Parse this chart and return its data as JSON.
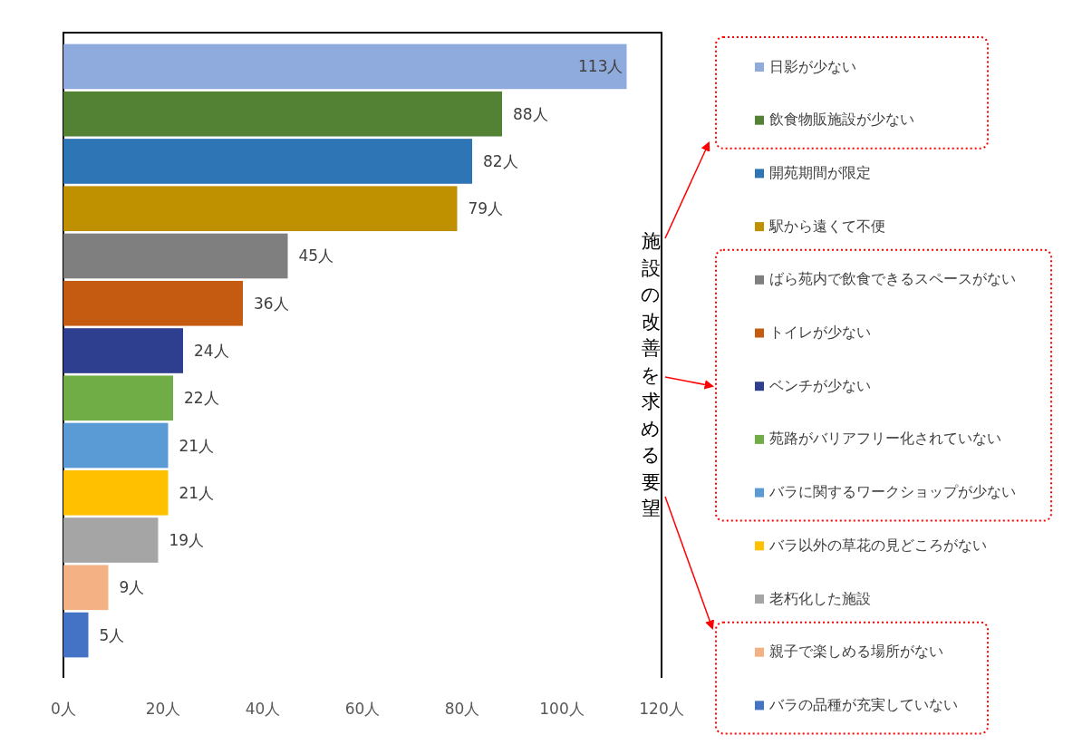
{
  "chart_data": {
    "type": "bar",
    "orientation": "horizontal",
    "stacked": true,
    "categories": [
      null,
      null,
      null,
      null,
      null,
      null,
      null,
      null,
      null,
      null,
      null,
      null,
      null
    ],
    "series": [
      {
        "name": "日影が少ない",
        "color": "#8faadc",
        "values": [
          113,
          null,
          null,
          null,
          null,
          null,
          null,
          null,
          null,
          null,
          null,
          null,
          null
        ],
        "value_labels": [
          "113人",
          null,
          null,
          null,
          null,
          null,
          null,
          null,
          null,
          null,
          null,
          null,
          null
        ]
      },
      {
        "name": "飲食物販施設が少ない",
        "color": "#548235",
        "values": [
          null,
          88,
          null,
          null,
          null,
          null,
          null,
          null,
          null,
          null,
          null,
          null,
          null
        ],
        "value_labels": [
          null,
          "88人",
          null,
          null,
          null,
          null,
          null,
          null,
          null,
          null,
          null,
          null,
          null
        ]
      },
      {
        "name": "開苑期間が限定",
        "color": "#2e75b6",
        "values": [
          null,
          null,
          82,
          null,
          null,
          null,
          null,
          null,
          null,
          null,
          null,
          null,
          null
        ],
        "value_labels": [
          null,
          null,
          "82人",
          null,
          null,
          null,
          null,
          null,
          null,
          null,
          null,
          null,
          null
        ]
      },
      {
        "name": "駅から遠くて不便",
        "color": "#bf9000",
        "values": [
          null,
          null,
          null,
          79,
          null,
          null,
          null,
          null,
          null,
          null,
          null,
          null,
          null
        ],
        "value_labels": [
          null,
          null,
          null,
          "79人",
          null,
          null,
          null,
          null,
          null,
          null,
          null,
          null,
          null
        ]
      },
      {
        "name": "ばら苑内で飲食できるスペースがない",
        "color": "#7f7f7f",
        "values": [
          null,
          null,
          null,
          null,
          45,
          null,
          null,
          null,
          null,
          null,
          null,
          null,
          null
        ],
        "value_labels": [
          null,
          null,
          null,
          null,
          "45人",
          null,
          null,
          null,
          null,
          null,
          null,
          null,
          null
        ]
      },
      {
        "name": "トイレが少ない",
        "color": "#c55a11",
        "values": [
          null,
          null,
          null,
          null,
          null,
          36,
          null,
          null,
          null,
          null,
          null,
          null,
          null
        ],
        "value_labels": [
          null,
          null,
          null,
          null,
          null,
          "36人",
          null,
          null,
          null,
          null,
          null,
          null,
          null
        ]
      },
      {
        "name": "ベンチが少ない",
        "color": "#2f3f8f",
        "values": [
          null,
          null,
          null,
          null,
          null,
          null,
          24,
          null,
          null,
          null,
          null,
          null,
          null
        ],
        "value_labels": [
          null,
          null,
          null,
          null,
          null,
          null,
          "24人",
          null,
          null,
          null,
          null,
          null,
          null
        ]
      },
      {
        "name": "苑路がバリアフリー化されていない",
        "color": "#70ad47",
        "values": [
          null,
          null,
          null,
          null,
          null,
          null,
          null,
          22,
          null,
          null,
          null,
          null,
          null
        ],
        "value_labels": [
          null,
          null,
          null,
          null,
          null,
          null,
          null,
          "22人",
          null,
          null,
          null,
          null,
          null
        ]
      },
      {
        "name": "バラに関するワークショップが少ない",
        "color": "#5b9bd5",
        "values": [
          null,
          null,
          null,
          null,
          null,
          null,
          null,
          null,
          21,
          null,
          null,
          null,
          null
        ],
        "value_labels": [
          null,
          null,
          null,
          null,
          null,
          null,
          null,
          null,
          "21人",
          null,
          null,
          null,
          null
        ]
      },
      {
        "name": "バラ以外の草花の見どころがない",
        "color": "#ffc000",
        "values": [
          null,
          null,
          null,
          null,
          null,
          null,
          null,
          null,
          null,
          21,
          null,
          null,
          null
        ],
        "value_labels": [
          null,
          null,
          null,
          null,
          null,
          null,
          null,
          null,
          null,
          "21人",
          null,
          null,
          null
        ]
      },
      {
        "name": "老朽化した施設",
        "color": "#a5a5a5",
        "values": [
          null,
          null,
          null,
          null,
          null,
          null,
          null,
          null,
          null,
          null,
          19,
          null,
          null
        ],
        "value_labels": [
          null,
          null,
          null,
          null,
          null,
          null,
          null,
          null,
          null,
          null,
          "19人",
          null,
          null
        ]
      },
      {
        "name": "親子で楽しめる場所がない",
        "color": "#f4b183",
        "values": [
          null,
          null,
          null,
          null,
          null,
          null,
          null,
          null,
          null,
          null,
          null,
          9,
          null
        ],
        "value_labels": [
          null,
          null,
          null,
          null,
          null,
          null,
          null,
          null,
          null,
          null,
          null,
          "9人",
          null
        ]
      },
      {
        "name": "バラの品種が充実していない",
        "color": "#4472c4",
        "values": [
          null,
          null,
          null,
          null,
          null,
          null,
          null,
          null,
          null,
          null,
          null,
          null,
          5
        ],
        "value_labels": [
          null,
          null,
          null,
          null,
          null,
          null,
          null,
          null,
          null,
          null,
          null,
          null,
          "5人"
        ]
      }
    ],
    "xlim": [
      0,
      120
    ],
    "xticks": [
      {
        "value": 0,
        "label": "0人"
      },
      {
        "value": 20,
        "label": "20人"
      },
      {
        "value": 40,
        "label": "40人"
      },
      {
        "value": 60,
        "label": "60人"
      },
      {
        "value": 80,
        "label": "80人"
      },
      {
        "value": 100,
        "label": "100人"
      },
      {
        "value": 120,
        "label": "120人"
      }
    ],
    "tick_labels": "x",
    "grid": false,
    "legend": "right",
    "annotations": [
      "施設の改善を求める要望"
    ]
  }
}
